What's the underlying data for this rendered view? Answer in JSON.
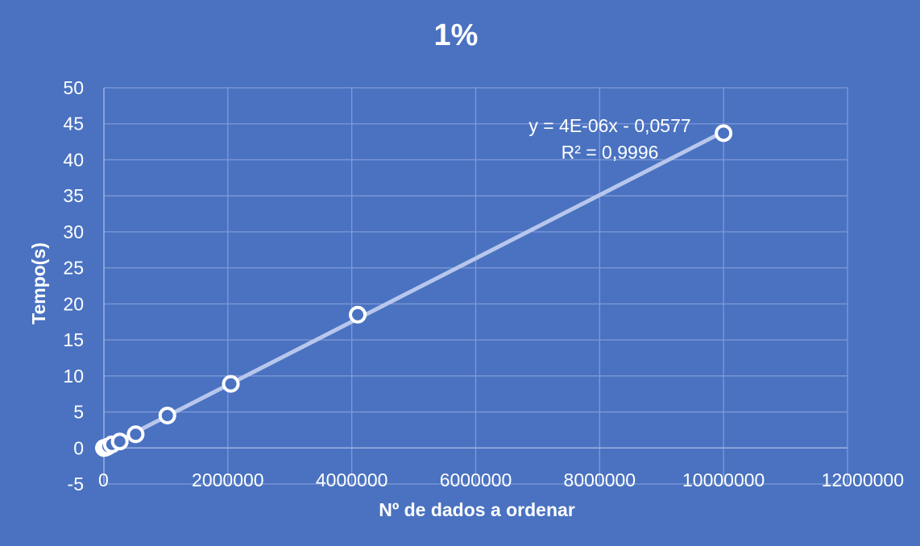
{
  "chart_data": {
    "type": "scatter",
    "title": "1%",
    "xlabel": "Nº de dados a ordenar",
    "ylabel": "Tempo(s)",
    "xlim": [
      0,
      12000000
    ],
    "ylim": [
      -5,
      50
    ],
    "x_ticks": [
      0,
      2000000,
      4000000,
      6000000,
      8000000,
      10000000,
      12000000
    ],
    "x_tick_labels": [
      "0",
      "2000000",
      "4000000",
      "6000000",
      "8000000",
      "10000000",
      "12000000"
    ],
    "y_ticks": [
      -5,
      0,
      5,
      10,
      15,
      20,
      25,
      30,
      35,
      40,
      45,
      50
    ],
    "y_tick_labels": [
      "-5",
      "0",
      "5",
      "10",
      "15",
      "20",
      "25",
      "30",
      "35",
      "40",
      "45",
      "50"
    ],
    "grid": true,
    "series": [
      {
        "x": [
          1000,
          2000,
          4000,
          8000,
          16000,
          32000,
          64000,
          128000,
          256000,
          512000,
          1024000,
          2048000,
          4096000,
          10000000
        ],
        "y": [
          0.0,
          0.0,
          0.01,
          0.02,
          0.04,
          0.08,
          0.2,
          0.5,
          0.9,
          1.9,
          4.5,
          8.9,
          18.5,
          43.7
        ]
      }
    ],
    "trendline": {
      "type": "linear",
      "x_range": [
        0,
        10000000
      ],
      "equation": "y = 4E-06x - 0,0577",
      "r_squared": "R² = 0,9996"
    },
    "colors": {
      "background": "#4a72c1",
      "marker_edge": "#ffffff",
      "trendline": "#b7c7ec",
      "gridline": "#7f9ad6",
      "text": "#ffffff"
    }
  }
}
